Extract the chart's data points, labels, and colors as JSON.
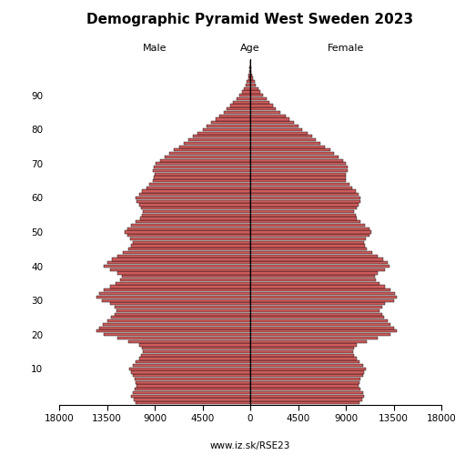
{
  "title": "Demographic Pyramid West Sweden 2023",
  "male_label": "Male",
  "female_label": "Female",
  "age_label": "Age",
  "url": "www.iz.sk/RSE23",
  "xlim": 18000,
  "bar_color": "#cd5c5c",
  "edge_color": "#000000",
  "ages": [
    0,
    1,
    2,
    3,
    4,
    5,
    6,
    7,
    8,
    9,
    10,
    11,
    12,
    13,
    14,
    15,
    16,
    17,
    18,
    19,
    20,
    21,
    22,
    23,
    24,
    25,
    26,
    27,
    28,
    29,
    30,
    31,
    32,
    33,
    34,
    35,
    36,
    37,
    38,
    39,
    40,
    41,
    42,
    43,
    44,
    45,
    46,
    47,
    48,
    49,
    50,
    51,
    52,
    53,
    54,
    55,
    56,
    57,
    58,
    59,
    60,
    61,
    62,
    63,
    64,
    65,
    66,
    67,
    68,
    69,
    70,
    71,
    72,
    73,
    74,
    75,
    76,
    77,
    78,
    79,
    80,
    81,
    82,
    83,
    84,
    85,
    86,
    87,
    88,
    89,
    90,
    91,
    92,
    93,
    94,
    95,
    96,
    97,
    98,
    99,
    100
  ],
  "male": [
    10800,
    11000,
    11200,
    11100,
    10900,
    10700,
    10800,
    10900,
    11100,
    11200,
    11400,
    11100,
    10800,
    10500,
    10300,
    10100,
    10200,
    10500,
    11500,
    12500,
    13800,
    14500,
    14200,
    13900,
    13500,
    13100,
    12800,
    12600,
    12800,
    13200,
    14000,
    14500,
    14200,
    13800,
    13200,
    12700,
    12300,
    12100,
    12500,
    13200,
    13800,
    13500,
    13000,
    12500,
    12000,
    11500,
    11200,
    11100,
    11300,
    11600,
    11800,
    11600,
    11200,
    10800,
    10400,
    10200,
    10100,
    10300,
    10500,
    10700,
    10800,
    10500,
    10200,
    9800,
    9500,
    9200,
    9100,
    9000,
    9200,
    9100,
    8900,
    8500,
    8100,
    7600,
    7200,
    6700,
    6300,
    5800,
    5400,
    5000,
    4500,
    4100,
    3700,
    3300,
    2900,
    2500,
    2200,
    1900,
    1600,
    1300,
    1000,
    800,
    600,
    450,
    320,
    210,
    140,
    90,
    55,
    30,
    15
  ],
  "female": [
    10300,
    10500,
    10700,
    10600,
    10400,
    10200,
    10300,
    10400,
    10600,
    10700,
    10900,
    10600,
    10300,
    10000,
    9800,
    9700,
    9800,
    10000,
    11000,
    12000,
    13200,
    13800,
    13500,
    13200,
    12900,
    12600,
    12400,
    12200,
    12400,
    12700,
    13500,
    13800,
    13600,
    13200,
    12700,
    12200,
    11800,
    11700,
    12000,
    12700,
    13100,
    12900,
    12500,
    12000,
    11500,
    11000,
    10800,
    10700,
    10900,
    11200,
    11400,
    11200,
    10800,
    10400,
    10000,
    9900,
    9800,
    10000,
    10200,
    10400,
    10400,
    10200,
    9900,
    9600,
    9300,
    9000,
    9000,
    9000,
    9200,
    9200,
    9000,
    8700,
    8300,
    7900,
    7500,
    7000,
    6600,
    6200,
    5800,
    5400,
    4900,
    4500,
    4100,
    3700,
    3300,
    2800,
    2400,
    2100,
    1800,
    1500,
    1200,
    950,
    730,
    550,
    400,
    270,
    170,
    105,
    65,
    35,
    18
  ],
  "age_ticks": [
    10,
    20,
    30,
    40,
    50,
    60,
    70,
    80,
    90
  ],
  "x_ticks_left": [
    18000,
    13500,
    9000,
    4500,
    0
  ],
  "x_ticks_right": [
    0,
    4500,
    9000,
    13500,
    18000
  ],
  "title_fontsize": 11,
  "label_fontsize": 8,
  "tick_fontsize": 7.5
}
